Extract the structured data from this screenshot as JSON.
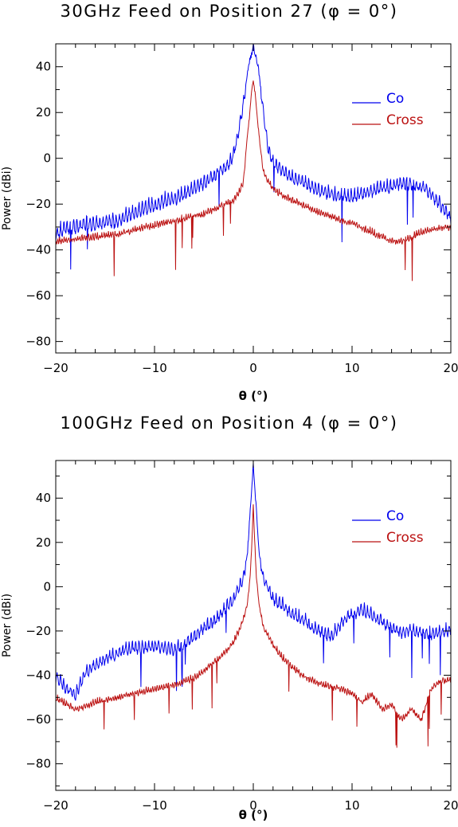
{
  "colors": {
    "co": "#0000ee",
    "cross": "#bb1111",
    "axes": "#000000"
  },
  "chart_data": [
    {
      "type": "line",
      "title": "30GHz Feed on Position 27 (φ = 0°)",
      "xlabel": "θ (°)",
      "ylabel": "Power (dBi)",
      "xlim": [
        -20,
        20
      ],
      "ylim": [
        -85,
        50
      ],
      "xticks": [
        -20,
        -10,
        0,
        10,
        20
      ],
      "yticks": [
        -80,
        -60,
        -40,
        -20,
        0,
        20,
        40
      ],
      "grid": false,
      "legend": "top-right",
      "series": [
        {
          "name": "Co",
          "color": "#0000ee",
          "x": [
            -20,
            -19,
            -18,
            -17,
            -16,
            -15,
            -14,
            -13,
            -12,
            -11,
            -10,
            -9,
            -8,
            -7,
            -6,
            -5,
            -4,
            -3,
            -2.5,
            -2,
            -1.5,
            -1,
            -0.5,
            0,
            0.5,
            1,
            1.5,
            2,
            3,
            4,
            5,
            6,
            7,
            8,
            9,
            10,
            11,
            12,
            13,
            14,
            15,
            16,
            17,
            18,
            19,
            20
          ],
          "y": [
            -32,
            -30,
            -29,
            -28,
            -28,
            -27,
            -27,
            -25,
            -23,
            -21,
            -20,
            -18,
            -17,
            -15,
            -12,
            -10,
            -7,
            -4,
            -2,
            2,
            12,
            25,
            40,
            49,
            40,
            22,
            5,
            -1,
            -5,
            -8,
            -10,
            -12,
            -14,
            -15,
            -16,
            -16,
            -15,
            -14,
            -12,
            -12,
            -10,
            -11,
            -12,
            -15,
            -20,
            -25
          ]
        },
        {
          "name": "Cross",
          "color": "#bb1111",
          "x": [
            -20,
            -18,
            -16,
            -14,
            -12,
            -10,
            -8,
            -6,
            -5,
            -4,
            -3,
            -2,
            -1.5,
            -1,
            -0.7,
            -0.4,
            -0.2,
            0,
            0.2,
            0.4,
            0.7,
            1,
            1.5,
            2,
            3,
            4,
            5,
            6,
            7,
            8,
            9,
            10,
            11,
            12,
            13,
            14,
            15,
            16,
            17,
            18,
            19,
            20
          ],
          "y": [
            -36,
            -35,
            -34,
            -33,
            -31,
            -29,
            -27,
            -25,
            -24,
            -22,
            -20,
            -18,
            -15,
            -10,
            5,
            18,
            28,
            34,
            28,
            18,
            5,
            -5,
            -10,
            -13,
            -16,
            -18,
            -20,
            -22,
            -24,
            -25,
            -27,
            -28,
            -30,
            -32,
            -34,
            -36,
            -36,
            -34,
            -32,
            -31,
            -30,
            -30
          ]
        }
      ]
    },
    {
      "type": "line",
      "title": "100GHz Feed on Position 4 (φ = 0°)",
      "xlabel": "θ (°)",
      "ylabel": "Power (dBi)",
      "xlim": [
        -20,
        20
      ],
      "ylim": [
        -92,
        57
      ],
      "xticks": [
        -20,
        -10,
        0,
        10,
        20
      ],
      "yticks": [
        -80,
        -60,
        -40,
        -20,
        0,
        20,
        40
      ],
      "grid": false,
      "legend": "top-right",
      "series": [
        {
          "name": "Co",
          "color": "#0000ee",
          "x": [
            -20,
            -19,
            -18,
            -17,
            -16,
            -15,
            -14,
            -13,
            -12,
            -11,
            -10,
            -9,
            -8,
            -7,
            -6,
            -5,
            -4,
            -3,
            -2,
            -1.5,
            -1,
            -0.6,
            -0.3,
            0,
            0.3,
            0.6,
            1,
            1.5,
            2,
            3,
            4,
            5,
            6,
            7,
            8,
            9,
            10,
            11,
            12,
            13,
            14,
            15,
            16,
            17,
            18,
            19,
            20
          ],
          "y": [
            -40,
            -45,
            -48,
            -38,
            -35,
            -32,
            -30,
            -28,
            -27,
            -27,
            -26,
            -27,
            -28,
            -25,
            -22,
            -18,
            -15,
            -10,
            -5,
            0,
            5,
            15,
            35,
            55,
            35,
            15,
            5,
            0,
            -5,
            -8,
            -12,
            -14,
            -18,
            -20,
            -22,
            -15,
            -12,
            -10,
            -12,
            -15,
            -18,
            -20,
            -19,
            -20,
            -21,
            -20,
            -19
          ]
        },
        {
          "name": "Cross",
          "color": "#bb1111",
          "x": [
            -20,
            -18,
            -16,
            -14,
            -12,
            -10,
            -8,
            -6,
            -5,
            -4,
            -3,
            -2,
            -1.5,
            -1,
            -0.6,
            -0.3,
            -0.1,
            0,
            0.1,
            0.3,
            0.6,
            1,
            1.5,
            2,
            3,
            4,
            5,
            6,
            7,
            8,
            9,
            10,
            11,
            12,
            13,
            14,
            15,
            16,
            17,
            18,
            19,
            20
          ],
          "y": [
            -50,
            -55,
            -52,
            -50,
            -48,
            -46,
            -44,
            -41,
            -38,
            -34,
            -30,
            -25,
            -20,
            -14,
            -8,
            5,
            25,
            37,
            25,
            5,
            -8,
            -18,
            -22,
            -26,
            -32,
            -36,
            -40,
            -42,
            -44,
            -45,
            -46,
            -48,
            -52,
            -48,
            -55,
            -53,
            -60,
            -55,
            -60,
            -46,
            -42,
            -42
          ]
        }
      ]
    }
  ]
}
